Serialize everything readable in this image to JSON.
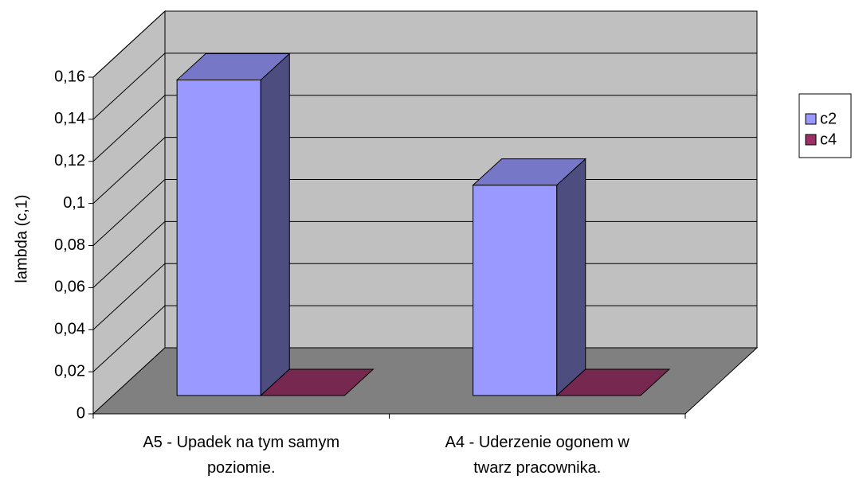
{
  "chart_data": {
    "type": "bar3d",
    "y_label": "lambda (c,1)",
    "categories": [
      "A5 - Upadek na tym samym poziomie.",
      "A4 - Uderzenie ogonem w twarz pracownika."
    ],
    "series": [
      {
        "name": "c2",
        "color": "#9999ff",
        "values": [
          0.15,
          0.1
        ]
      },
      {
        "name": "c4",
        "color": "#993366",
        "values": [
          0,
          0
        ]
      }
    ],
    "ylim": [
      0,
      0.16
    ],
    "yticks": [
      0,
      {
        "value": 0.02,
        "label": "0,02"
      },
      {
        "value": 0.04,
        "label": "0,04"
      },
      {
        "value": 0.06,
        "label": "0,06"
      },
      {
        "value": 0.08,
        "label": "0,08"
      },
      {
        "value": 0.1,
        "label": "0,1"
      },
      {
        "value": 0.12,
        "label": "0,12"
      },
      {
        "value": 0.14,
        "label": "0,14"
      },
      {
        "value": 0.16,
        "label": "0,16"
      }
    ],
    "grid": true,
    "legend": "right"
  }
}
